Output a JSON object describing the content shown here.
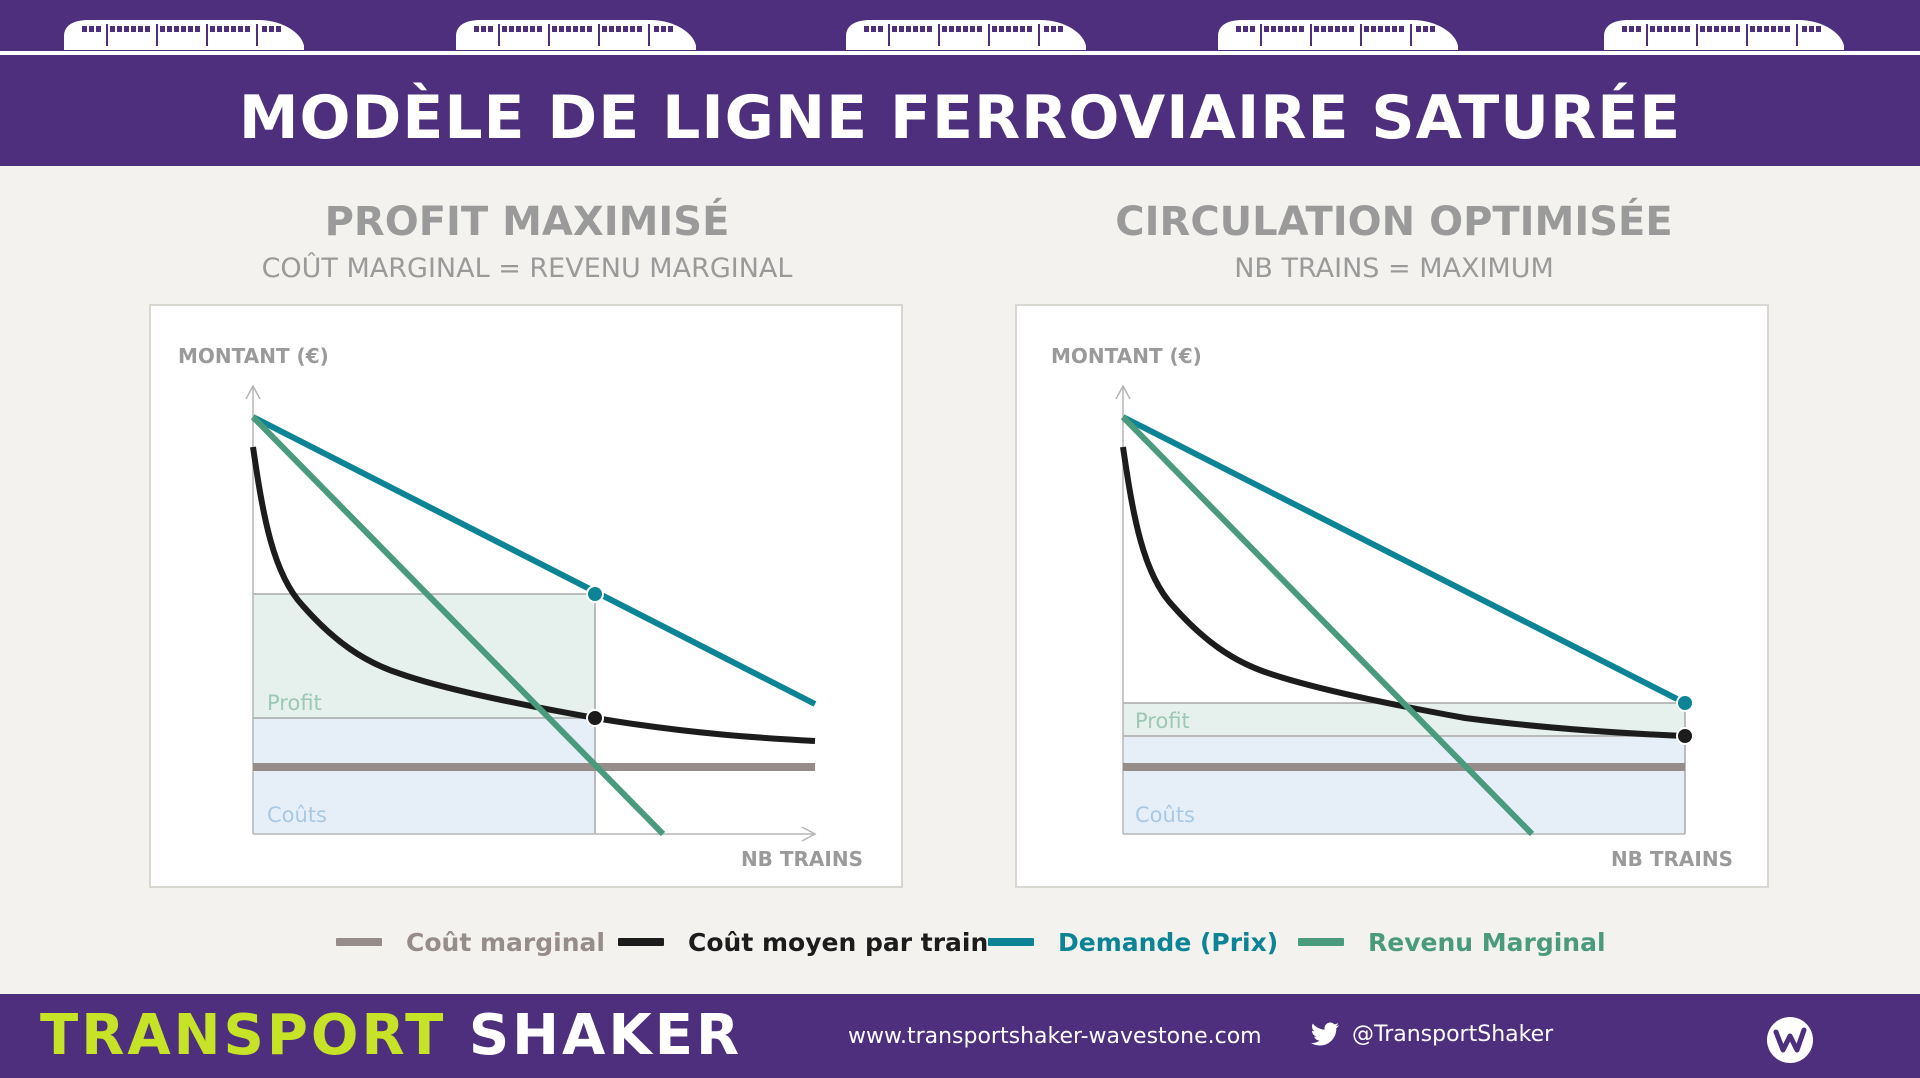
{
  "header": {
    "title": "MODÈLE DE LIGNE FERROVIAIRE SATURÉE"
  },
  "panels": [
    {
      "title": "PROFIT MAXIMISÉ",
      "subtitle": "COÛT MARGINAL = REVENU MARGINAL",
      "ylabel": "MONTANT (€)",
      "xlabel": "NB TRAINS",
      "profit_label": "Profit",
      "costs_label": "Coûts"
    },
    {
      "title": "CIRCULATION OPTIMISÉE",
      "subtitle": "NB TRAINS = MAXIMUM",
      "ylabel": "MONTANT (€)",
      "xlabel": "NB TRAINS",
      "profit_label": "Profit",
      "costs_label": "Coûts"
    }
  ],
  "legend": [
    {
      "label": "Coût marginal",
      "color": "#968c8a"
    },
    {
      "label": "Coût moyen par train",
      "color": "#1c1c1c"
    },
    {
      "label": "Demande (Prix)",
      "color": "#0c8496"
    },
    {
      "label": "Revenu Marginal",
      "color": "#4a9a7e"
    }
  ],
  "footer": {
    "brand_part1": "TRANSPORT",
    "brand_part2": "SHAKER",
    "website": "www.transportshaker-wavestone.com",
    "twitter": "@TransportShaker"
  },
  "colors": {
    "header_band": "#4e2f7d",
    "brand_green": "#c6e327",
    "profit_fill": "#e6f0ec",
    "costs_fill": "#e6eff8"
  }
}
